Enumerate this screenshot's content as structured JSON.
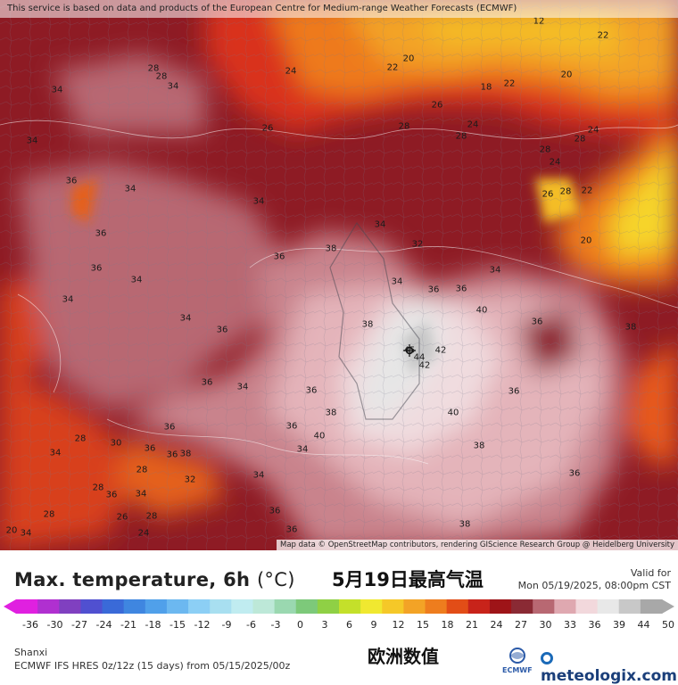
{
  "notice": "This service is based on data and products of the European Centre for Medium-range Weather Forecasts (ECMWF)",
  "attribution": "Map data © OpenStreetMap contributors, rendering GIScience Research Group @ Heidelberg University",
  "title": "Max. temperature, 6h",
  "title_unit": "(°C)",
  "title_cn": "5月19日最高气温",
  "valid_label": "Valid for",
  "valid_time": "Mon 05/19/2025, 08:00pm CST",
  "region": "Shanxi",
  "model_info": "ECMWF IFS HRES 0z/12z (15 days) from 05/15/2025/00z",
  "footer_cn": "欧洲数值",
  "ecmwf_logo_text": "ECMWF",
  "meteologix_logo_text": "meteologix.com",
  "colorbar_ticks": [
    "-36",
    "-30",
    "-27",
    "-24",
    "-21",
    "-18",
    "-15",
    "-12",
    "-9",
    "-6",
    "-3",
    "0",
    "3",
    "6",
    "9",
    "12",
    "15",
    "18",
    "21",
    "24",
    "27",
    "30",
    "33",
    "36",
    "39",
    "44",
    "50"
  ],
  "colorbar_colors": [
    "#e020e0",
    "#b030d0",
    "#8040c0",
    "#5050d0",
    "#3a6ad8",
    "#3f86e0",
    "#50a0ea",
    "#6cb8f0",
    "#8ccff5",
    "#a8dff0",
    "#c0ecf0",
    "#bde8d8",
    "#9ad8b0",
    "#7dc97a",
    "#8fd045",
    "#c4e02a",
    "#f0e830",
    "#f5c828",
    "#f3a326",
    "#ee7d1e",
    "#e24d17",
    "#c8231a",
    "#9e1418",
    "#8a2a34",
    "#b86872",
    "#dfa8b0",
    "#f2d8dc",
    "#e8e8e8",
    "#c8c8c8",
    "#a8a8a8"
  ],
  "map_labels": [
    {
      "text": "12"
    },
    {
      "text": "22"
    },
    {
      "text": "20"
    },
    {
      "text": "22"
    },
    {
      "text": "18"
    },
    {
      "text": "22"
    },
    {
      "text": "20"
    },
    {
      "text": "24"
    },
    {
      "text": "26"
    },
    {
      "text": "24"
    },
    {
      "text": "24"
    },
    {
      "text": "28"
    },
    {
      "text": "34"
    },
    {
      "text": "28"
    },
    {
      "text": "34"
    },
    {
      "text": "28"
    },
    {
      "text": "34"
    },
    {
      "text": "26"
    },
    {
      "text": "24"
    },
    {
      "text": "28"
    },
    {
      "text": "28"
    },
    {
      "text": "28"
    },
    {
      "text": "28"
    },
    {
      "text": "22"
    },
    {
      "text": "26"
    },
    {
      "text": "36"
    },
    {
      "text": "34"
    },
    {
      "text": "34"
    },
    {
      "text": "36"
    },
    {
      "text": "34"
    },
    {
      "text": "34"
    },
    {
      "text": "36"
    },
    {
      "text": "20"
    },
    {
      "text": "34"
    },
    {
      "text": "32"
    },
    {
      "text": "36"
    },
    {
      "text": "38"
    },
    {
      "text": "40"
    },
    {
      "text": "36"
    },
    {
      "text": "34"
    },
    {
      "text": "34"
    },
    {
      "text": "36"
    },
    {
      "text": "34"
    },
    {
      "text": "36"
    },
    {
      "text": "38"
    },
    {
      "text": "45"
    },
    {
      "text": "44"
    },
    {
      "text": "42"
    },
    {
      "text": "42"
    },
    {
      "text": "36"
    },
    {
      "text": "34"
    },
    {
      "text": "36"
    },
    {
      "text": "36"
    },
    {
      "text": "38"
    },
    {
      "text": "36"
    },
    {
      "text": "40"
    },
    {
      "text": "40"
    },
    {
      "text": "36"
    },
    {
      "text": "38"
    },
    {
      "text": "36"
    },
    {
      "text": "36"
    },
    {
      "text": "38"
    },
    {
      "text": "36"
    },
    {
      "text": "34"
    },
    {
      "text": "38"
    },
    {
      "text": "34"
    },
    {
      "text": "28"
    },
    {
      "text": "30"
    },
    {
      "text": "28"
    },
    {
      "text": "34"
    },
    {
      "text": "32"
    },
    {
      "text": "36"
    },
    {
      "text": "28"
    },
    {
      "text": "34"
    },
    {
      "text": "36"
    },
    {
      "text": "28"
    },
    {
      "text": "28"
    },
    {
      "text": "36"
    },
    {
      "text": "26"
    },
    {
      "text": "20"
    },
    {
      "text": "34"
    },
    {
      "text": "24"
    },
    {
      "text": "36"
    },
    {
      "text": "38"
    }
  ]
}
